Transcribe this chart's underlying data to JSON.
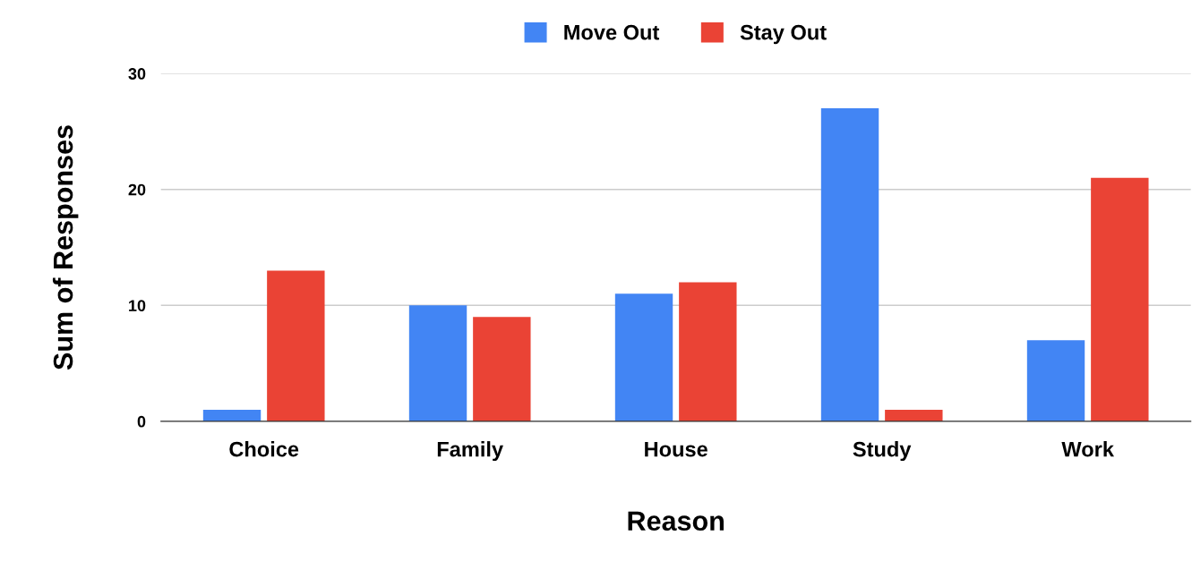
{
  "chart_data": {
    "type": "bar",
    "xlabel": "Reason",
    "ylabel": "Sum of Responses",
    "categories": [
      "Choice",
      "Family",
      "House",
      "Study",
      "Work"
    ],
    "series": [
      {
        "name": "Move Out",
        "color": "#4285f4",
        "values": [
          1,
          10,
          11,
          27,
          7
        ]
      },
      {
        "name": "Stay Out",
        "color": "#ea4335",
        "values": [
          13,
          9,
          12,
          1,
          21
        ]
      }
    ],
    "ylim": [
      0,
      30
    ],
    "yticks": [
      0,
      10,
      20,
      30
    ],
    "grid": "y",
    "legend": "top"
  }
}
